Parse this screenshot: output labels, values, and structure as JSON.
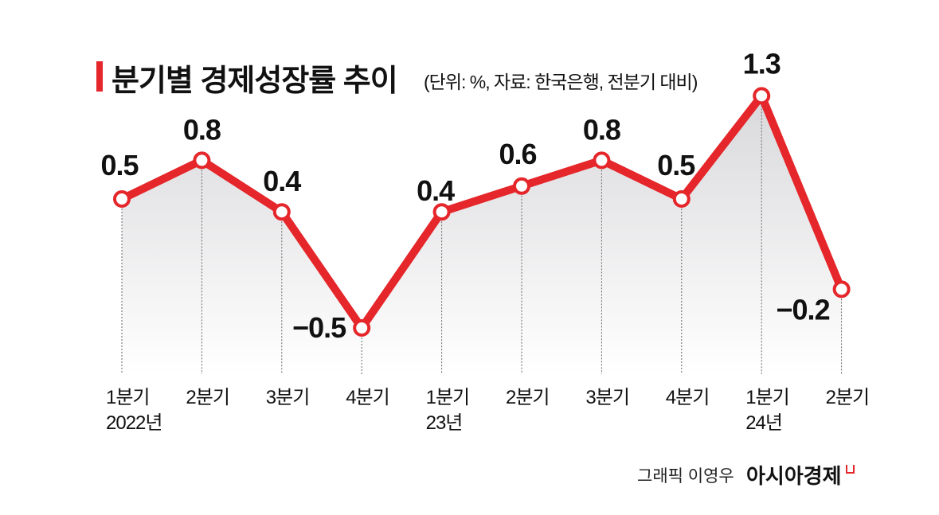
{
  "chart_data": {
    "type": "line",
    "title": "분기별 경제성장률 추이",
    "subtitle": "(단위: %, 자료: 한국은행, 전분기 대비)",
    "categories": [
      [
        "1분기",
        "2022년"
      ],
      [
        "2분기"
      ],
      [
        "3분기"
      ],
      [
        "4분기"
      ],
      [
        "1분기",
        "23년"
      ],
      [
        "2분기"
      ],
      [
        "3분기"
      ],
      [
        "4분기"
      ],
      [
        "1분기",
        "24년"
      ],
      [
        "2분기"
      ]
    ],
    "values": [
      0.5,
      0.8,
      0.4,
      -0.5,
      0.4,
      0.6,
      0.8,
      0.5,
      1.3,
      -0.2
    ],
    "value_labels": [
      "0.5",
      "0.8",
      "0.4",
      "−0.5",
      "0.4",
      "0.6",
      "0.8",
      "0.5",
      "1.3",
      "−0.2"
    ],
    "line_color": "#e5262a",
    "marker": "hollow-circle",
    "grid": false,
    "area_fill": "gray-gradient"
  },
  "footer": {
    "credit": "그래픽 이영우",
    "brand": "아시아경제"
  }
}
